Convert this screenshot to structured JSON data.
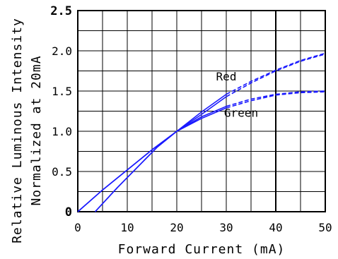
{
  "chart_data": {
    "type": "line",
    "title": "",
    "xlabel": "Forward Current (mA)",
    "ylabel_line1": "Relative Luminous Intensity",
    "ylabel_line2": "Normalized at 20mA",
    "xlim": [
      0,
      50
    ],
    "ylim": [
      0,
      2.5
    ],
    "x_ticks": [
      {
        "value": 0,
        "label": "0"
      },
      {
        "value": 10,
        "label": "10"
      },
      {
        "value": 20,
        "label": "20"
      },
      {
        "value": 30,
        "label": "30"
      },
      {
        "value": 40,
        "label": "40"
      },
      {
        "value": 50,
        "label": "50"
      }
    ],
    "y_ticks": [
      {
        "value": 0,
        "label": "0"
      },
      {
        "value": 0.5,
        "label": "0.5"
      },
      {
        "value": 1.0,
        "label": "1.0"
      },
      {
        "value": 1.5,
        "label": "1.5"
      },
      {
        "value": 2.0,
        "label": "2.0"
      },
      {
        "value": 2.5,
        "label": "2.5"
      }
    ],
    "grid": true,
    "grid_x_step": 5,
    "grid_y_step": 0.25,
    "highlight_x": 40,
    "line_color": "#1a1aff",
    "series": [
      {
        "name": "Red",
        "label_at": [
          30,
          1.63
        ],
        "solid": [
          [
            0,
            0
          ],
          [
            5,
            0.27
          ],
          [
            10,
            0.52
          ],
          [
            15,
            0.77
          ],
          [
            20,
            1.0
          ],
          [
            25,
            1.24
          ],
          [
            30,
            1.46
          ]
        ],
        "dashed": [
          [
            30,
            1.46
          ],
          [
            35,
            1.62
          ],
          [
            40,
            1.76
          ],
          [
            45,
            1.88
          ],
          [
            50,
            1.97
          ]
        ],
        "solid_b": [
          [
            3.5,
            0
          ],
          [
            8,
            0.3
          ],
          [
            12,
            0.55
          ],
          [
            16,
            0.8
          ],
          [
            20,
            1.0
          ],
          [
            25,
            1.21
          ],
          [
            30,
            1.43
          ]
        ],
        "dashed_b": [
          [
            30,
            1.43
          ],
          [
            35,
            1.6
          ],
          [
            40,
            1.75
          ],
          [
            45,
            1.87
          ],
          [
            50,
            1.96
          ]
        ]
      },
      {
        "name": "Green",
        "label_at": [
          33,
          1.18
        ],
        "solid": [
          [
            0,
            0
          ],
          [
            5,
            0.27
          ],
          [
            10,
            0.52
          ],
          [
            15,
            0.77
          ],
          [
            20,
            1.0
          ],
          [
            25,
            1.18
          ],
          [
            30,
            1.31
          ]
        ],
        "dashed": [
          [
            30,
            1.31
          ],
          [
            35,
            1.4
          ],
          [
            40,
            1.46
          ],
          [
            45,
            1.49
          ],
          [
            50,
            1.5
          ]
        ],
        "solid_b": [
          [
            3.5,
            0
          ],
          [
            8,
            0.3
          ],
          [
            12,
            0.55
          ],
          [
            16,
            0.8
          ],
          [
            20,
            1.0
          ],
          [
            25,
            1.16
          ],
          [
            30,
            1.29
          ]
        ],
        "dashed_b": [
          [
            30,
            1.29
          ],
          [
            35,
            1.38
          ],
          [
            40,
            1.45
          ],
          [
            45,
            1.48
          ],
          [
            50,
            1.49
          ]
        ]
      }
    ]
  }
}
